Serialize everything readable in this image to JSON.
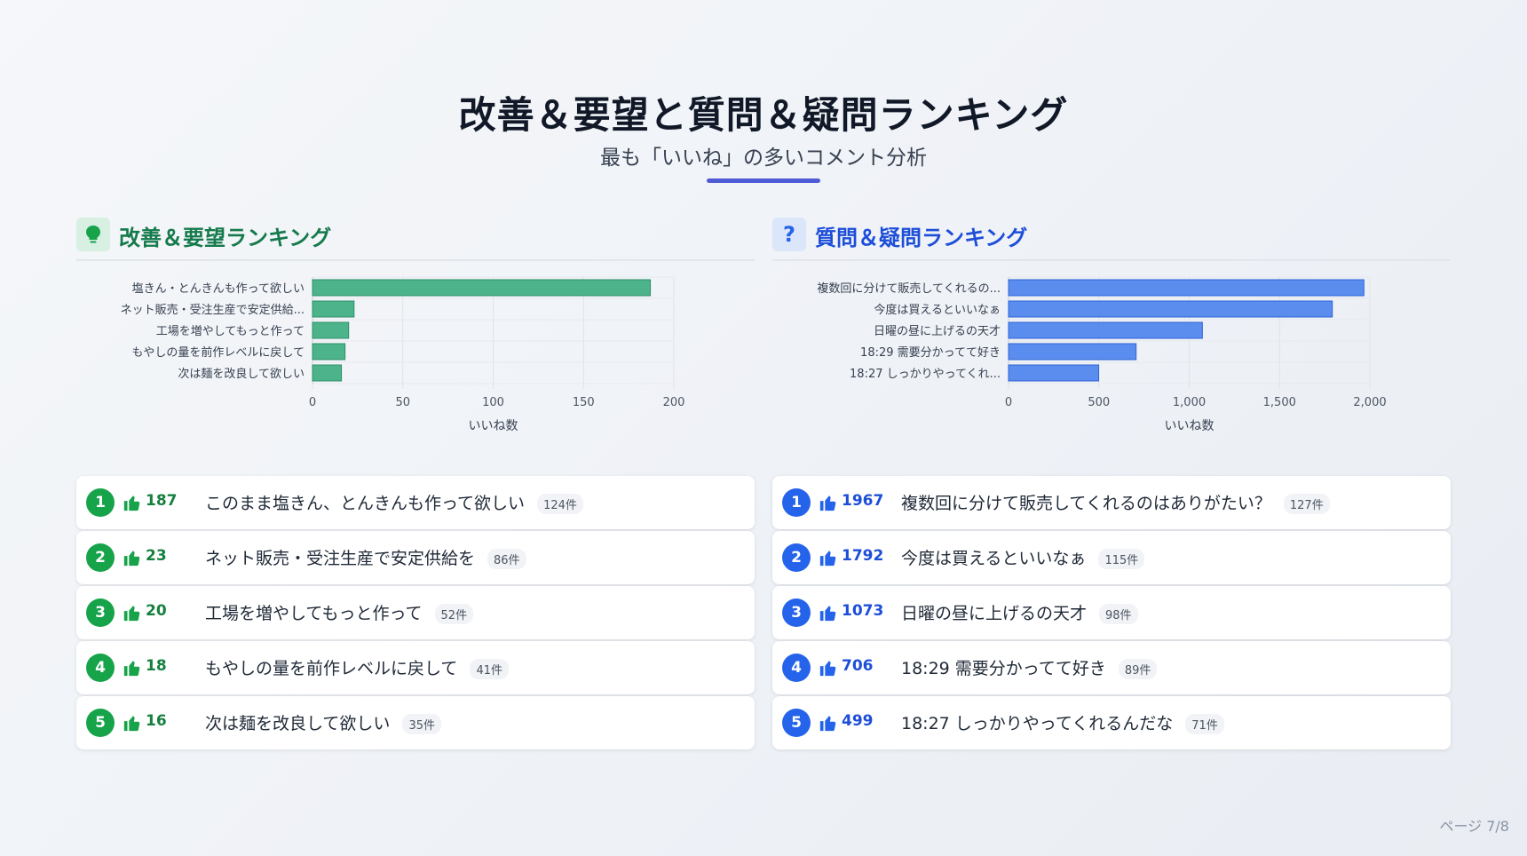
{
  "title": "改善＆要望と質問＆疑問ランキング",
  "subtitle": "最も「いいね」の多いコメント分析",
  "page": "ページ 7/8",
  "left": {
    "heading": "改善＆要望ランキング",
    "icon": "lightbulb-icon",
    "accent": "#16a34a",
    "items": [
      {
        "rank": "1",
        "likes": "187",
        "text": "このまま塩きん、とんきんも作って欲しい",
        "count": "124件"
      },
      {
        "rank": "2",
        "likes": "23",
        "text": "ネット販売・受注生産で安定供給を",
        "count": "86件"
      },
      {
        "rank": "3",
        "likes": "20",
        "text": "工場を増やしてもっと作って",
        "count": "52件"
      },
      {
        "rank": "4",
        "likes": "18",
        "text": "もやしの量を前作レベルに戻して",
        "count": "41件"
      },
      {
        "rank": "5",
        "likes": "16",
        "text": "次は麺を改良して欲しい",
        "count": "35件"
      }
    ]
  },
  "right": {
    "heading": "質問＆疑問ランキング",
    "icon_glyph": "?",
    "icon": "question-icon",
    "accent": "#2563eb",
    "items": [
      {
        "rank": "1",
        "likes": "1967",
        "text": "複数回に分けて販売してくれるのはありがたい？",
        "count": "127件"
      },
      {
        "rank": "2",
        "likes": "1792",
        "text": "今度は買えるといいなぁ",
        "count": "115件"
      },
      {
        "rank": "3",
        "likes": "1073",
        "text": "日曜の昼に上げるの天才",
        "count": "98件"
      },
      {
        "rank": "4",
        "likes": "706",
        "text": "18:29 需要分かってて好き",
        "count": "89件"
      },
      {
        "rank": "5",
        "likes": "499",
        "text": "18:27 しっかりやってくれるんだな",
        "count": "71件"
      }
    ]
  },
  "chart_data": [
    {
      "type": "bar",
      "orientation": "horizontal",
      "categories": [
        "塩きん・とんきんも作って欲しい",
        "ネット販売・受注生産で安定供給...",
        "工場を増やしてもっと作って",
        "もやしの量を前作レベルに戻して",
        "次は麺を改良して欲しい"
      ],
      "values": [
        187,
        23,
        20,
        18,
        16
      ],
      "xlabel": "いいね数",
      "xlim": [
        0,
        200
      ],
      "xticks": [
        0,
        50,
        100,
        150,
        200
      ],
      "xtick_labels": [
        "0",
        "50",
        "100",
        "150",
        "200"
      ],
      "grid": true,
      "bar_color": "#4cb38b",
      "bar_border": "#2f8f67"
    },
    {
      "type": "bar",
      "orientation": "horizontal",
      "categories": [
        "複数回に分けて販売してくれるの...",
        "今度は買えるといいなぁ",
        "日曜の昼に上げるの天才",
        "18:29 需要分かってて好き",
        "18:27 しっかりやってくれ..."
      ],
      "values": [
        1967,
        1792,
        1073,
        706,
        499
      ],
      "xlabel": "いいね数",
      "xlim": [
        0,
        2000
      ],
      "xticks": [
        0,
        500,
        1000,
        1500,
        2000
      ],
      "xtick_labels": [
        "0",
        "500",
        "1,000",
        "1,500",
        "2,000"
      ],
      "grid": true,
      "bar_color": "#5b8def",
      "bar_border": "#2e63d6"
    }
  ]
}
